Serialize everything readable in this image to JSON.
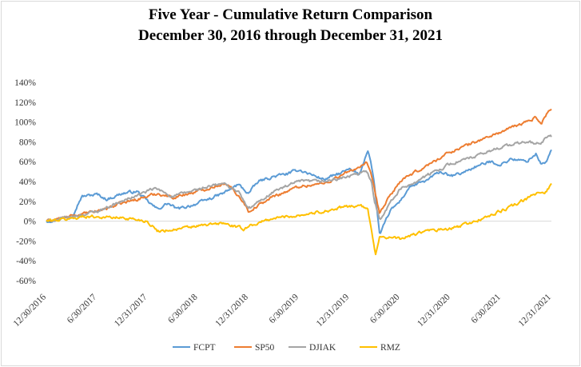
{
  "chart_data": {
    "type": "line",
    "title": "Five Year - Cumulative Return Comparison",
    "subtitle": "December 30, 2016 through December 31, 2021",
    "xlabel": "",
    "ylabel": "",
    "ylim": [
      -60,
      140
    ],
    "y_tick_labels": [
      "140%",
      "120%",
      "100%",
      "80%",
      "60%",
      "40%",
      "20%",
      "0%",
      "-20%",
      "-40%",
      "-60%"
    ],
    "x_tick_labels": [
      "12/30/2016",
      "6/30/2017",
      "12/31/2017",
      "6/30/2018",
      "12/31/2018",
      "6/30/2019",
      "12/31/2019",
      "6/30/2020",
      "12/31/2020",
      "6/30/2021",
      "12/31/2021"
    ],
    "x_tick_years": [
      0,
      0.5,
      1,
      1.5,
      2,
      2.5,
      3,
      3.5,
      4,
      4.5,
      5
    ],
    "legend_position": "bottom",
    "series": [
      {
        "name": "FCPT",
        "color": "#5b9bd5",
        "x": [
          0,
          0.25,
          0.35,
          0.5,
          0.6,
          0.75,
          0.9,
          1.0,
          1.1,
          1.2,
          1.3,
          1.5,
          1.6,
          1.75,
          1.9,
          2.0,
          2.1,
          2.25,
          2.4,
          2.5,
          2.75,
          3.0,
          3.1,
          3.18,
          3.2,
          3.22,
          3.25,
          3.3,
          3.4,
          3.5,
          3.6,
          3.75,
          3.9,
          4.0,
          4.1,
          4.25,
          4.4,
          4.5,
          4.6,
          4.75,
          4.85,
          4.9,
          4.95,
          5.0
        ],
        "values": [
          0,
          5,
          25,
          27,
          22,
          28,
          30,
          20,
          12,
          18,
          12,
          18,
          22,
          28,
          37,
          28,
          40,
          45,
          48,
          52,
          42,
          52,
          47,
          72,
          65,
          55,
          35,
          -15,
          10,
          20,
          35,
          40,
          50,
          45,
          48,
          55,
          60,
          57,
          63,
          60,
          68,
          57,
          60,
          72
        ]
      },
      {
        "name": "SP50",
        "color": "#ed7d31",
        "x": [
          0,
          0.25,
          0.5,
          0.75,
          1.0,
          1.1,
          1.25,
          1.5,
          1.75,
          1.85,
          1.95,
          2.0,
          2.25,
          2.5,
          2.75,
          3.0,
          3.1,
          3.17,
          3.22,
          3.25,
          3.3,
          3.4,
          3.5,
          3.75,
          4.0,
          4.25,
          4.5,
          4.75,
          4.85,
          4.9,
          4.95,
          5.0
        ],
        "values": [
          0,
          5,
          10,
          18,
          25,
          28,
          24,
          30,
          38,
          32,
          20,
          10,
          25,
          35,
          38,
          50,
          55,
          58,
          45,
          30,
          8,
          25,
          40,
          55,
          70,
          80,
          90,
          100,
          105,
          98,
          108,
          113
        ]
      },
      {
        "name": "DJIAK",
        "color": "#a5a5a5",
        "x": [
          0,
          0.25,
          0.5,
          0.75,
          1.0,
          1.08,
          1.25,
          1.5,
          1.75,
          1.9,
          2.0,
          2.25,
          2.5,
          2.75,
          3.0,
          3.1,
          3.17,
          3.22,
          3.25,
          3.3,
          3.4,
          3.5,
          3.75,
          4.0,
          4.25,
          4.5,
          4.75,
          4.9,
          4.95,
          5.0
        ],
        "values": [
          0,
          4,
          10,
          20,
          30,
          33,
          25,
          32,
          38,
          30,
          12,
          30,
          40,
          40,
          45,
          48,
          50,
          40,
          20,
          2,
          18,
          32,
          45,
          58,
          65,
          75,
          80,
          78,
          85,
          85
        ]
      },
      {
        "name": "RMZ",
        "color": "#ffc000",
        "x": [
          0,
          0.2,
          0.4,
          0.6,
          0.8,
          1.0,
          1.1,
          1.3,
          1.5,
          1.75,
          1.95,
          2.0,
          2.25,
          2.5,
          2.75,
          3.0,
          3.1,
          3.18,
          3.22,
          3.26,
          3.3,
          3.5,
          3.75,
          4.0,
          4.25,
          4.5,
          4.75,
          4.85,
          4.95,
          5.0
        ],
        "values": [
          0,
          2,
          5,
          4,
          3,
          0,
          -10,
          -8,
          -5,
          -2,
          -8,
          -5,
          3,
          6,
          10,
          15,
          16,
          12,
          -10,
          -33,
          -15,
          -18,
          -10,
          -8,
          0,
          10,
          22,
          28,
          30,
          38
        ]
      }
    ]
  }
}
